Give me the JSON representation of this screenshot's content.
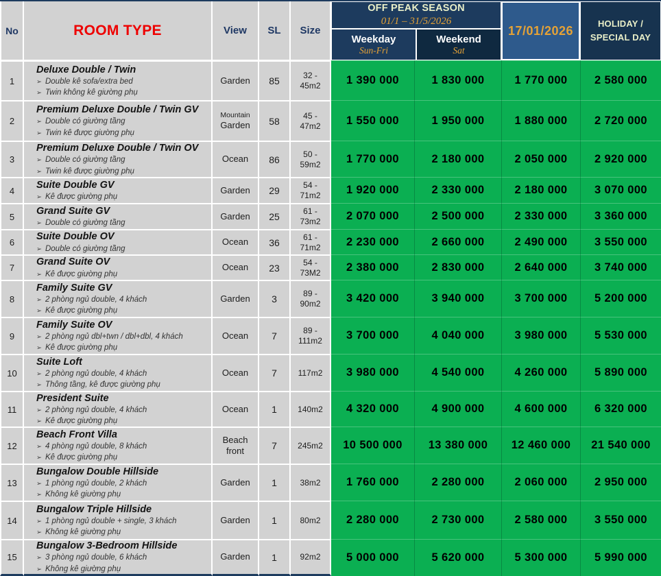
{
  "colors": {
    "green": "#0bAF52",
    "navy": "#1d3b5e",
    "navy_dark": "#0f2940",
    "blue": "#2e5a8c",
    "holiday_navy": "#17334f",
    "gray": "#d2d2d2",
    "red": "#ee0000",
    "navy_text": "#1f3864",
    "gold": "#e5a236",
    "pale_yellow": "#e9efc8"
  },
  "icons": {
    "bullet_marker": "➢"
  },
  "header": {
    "no": "No",
    "room_type": "ROOM TYPE",
    "view": "View",
    "sl": "SL",
    "size": "Size",
    "off_peak_title": "OFF PEAK SEASON",
    "off_peak_dates": "01/1 – 31/5/2026",
    "weekday_label": "Weekday",
    "weekday_sub": "Sun-Fri",
    "weekend_label": "Weekend",
    "weekend_sub": "Sat",
    "special_date": "17/01/2026",
    "holiday_line1": "HOLIDAY /",
    "holiday_line2": "SPECIAL DAY"
  },
  "rows": [
    {
      "no": "1",
      "title": "Deluxe Double / Twin",
      "bullets": [
        "Double kê sofa/extra bed",
        "Twin không kê giường phụ"
      ],
      "view": "Garden",
      "sl": "85",
      "size": "32 -\n45m2",
      "prices": [
        "1 390 000",
        "1 830 000",
        "1 770 000",
        "2 580 000"
      ]
    },
    {
      "no": "2",
      "title": "Premium Deluxe Double / Twin GV",
      "bullets": [
        "Double có giường tầng",
        "Twin kê được giường phụ"
      ],
      "view": "Mountain\nGarden",
      "view_first_line_small": true,
      "sl": "58",
      "size": "45 -\n47m2",
      "prices": [
        "1 550 000",
        "1 950 000",
        "1 880 000",
        "2 720 000"
      ]
    },
    {
      "no": "3",
      "title": "Premium Deluxe Double / Twin OV",
      "bullets": [
        "Double có giường tầng",
        "Twin kê được giường phụ"
      ],
      "view": "Ocean",
      "sl": "86",
      "size": "50 -\n59m2",
      "prices": [
        "1 770 000",
        "2 180 000",
        "2 050 000",
        "2 920 000"
      ]
    },
    {
      "no": "4",
      "title": "Suite Double GV",
      "bullets": [
        "Kê được giường phụ"
      ],
      "view": "Garden",
      "sl": "29",
      "size": "54 -\n71m2",
      "prices": [
        "1 920 000",
        "2 330 000",
        "2 180 000",
        "3 070 000"
      ]
    },
    {
      "no": "5",
      "title": "Grand Suite GV",
      "bullets": [
        "Double có giường tầng"
      ],
      "view": "Garden",
      "sl": "25",
      "size": "61 -\n73m2",
      "prices": [
        "2 070 000",
        "2 500 000",
        "2 330 000",
        "3 360 000"
      ]
    },
    {
      "no": "6",
      "title": "Suite Double OV",
      "bullets": [
        "Double có giường tầng"
      ],
      "view": "Ocean",
      "sl": "36",
      "size": "61 -\n71m2",
      "prices": [
        "2 230 000",
        "2 660 000",
        "2 490 000",
        "3 550 000"
      ]
    },
    {
      "no": "7",
      "title": "Grand Suite OV",
      "bullets": [
        "Kê được giường phụ"
      ],
      "view": "Ocean",
      "sl": "23",
      "size": "54 -\n73M2",
      "prices": [
        "2 380 000",
        "2 830 000",
        "2 640 000",
        "3 740 000"
      ]
    },
    {
      "no": "8",
      "title": "Family Suite GV",
      "bullets": [
        "2 phòng ngủ double, 4 khách",
        "Kê được giường phụ"
      ],
      "view": "Garden",
      "sl": "3",
      "size": "89 -\n90m2",
      "prices": [
        "3 420 000",
        "3 940 000",
        "3 700 000",
        "5 200 000"
      ]
    },
    {
      "no": "9",
      "title": "Family Suite OV",
      "bullets": [
        "2 phòng ngủ dbl+twn / dbl+dbl, 4 khách",
        "Kê được giường phụ"
      ],
      "view": "Ocean",
      "sl": "7",
      "size": "89 -\n111m2",
      "prices": [
        "3 700 000",
        "4 040 000",
        "3 980 000",
        "5 530 000"
      ]
    },
    {
      "no": "10",
      "title": "Suite Loft",
      "bullets": [
        "2 phòng ngủ double, 4 khách",
        "Thông tầng, kê được giường phụ"
      ],
      "view": "Ocean",
      "sl": "7",
      "size": "117m2",
      "prices": [
        "3 980 000",
        "4 540 000",
        "4 260 000",
        "5 890 000"
      ]
    },
    {
      "no": "11",
      "title": "President Suite",
      "bullets": [
        "2 phòng ngủ double, 4 khách",
        "Kê được giường phụ"
      ],
      "view": "Ocean",
      "sl": "1",
      "size": "140m2",
      "prices": [
        "4 320 000",
        "4 900 000",
        "4 600 000",
        "6 320 000"
      ]
    },
    {
      "no": "12",
      "title": "Beach Front Villa",
      "bullets": [
        "4 phòng ngủ double, 8 khách",
        "Kê được giường phụ"
      ],
      "view": "Beach\nfront",
      "sl": "7",
      "size": "245m2",
      "prices": [
        "10 500 000",
        "13 380 000",
        "12 460 000",
        "21 540 000"
      ]
    },
    {
      "no": "13",
      "title": "Bungalow Double Hillside",
      "bullets": [
        "1 phòng ngủ double, 2 khách",
        "Không kê giường phụ"
      ],
      "view": "Garden",
      "sl": "1",
      "size": "38m2",
      "prices": [
        "1 760 000",
        "2 280 000",
        "2 060 000",
        "2 950 000"
      ]
    },
    {
      "no": "14",
      "title": "Bungalow Triple Hillside",
      "bullets": [
        "1 phòng ngủ double + single, 3 khách",
        "Không kê giường phụ"
      ],
      "view": "Garden",
      "sl": "1",
      "size": "80m2",
      "prices": [
        "2 280 000",
        "2 730 000",
        "2 580 000",
        "3 550 000"
      ]
    },
    {
      "no": "15",
      "title": "Bungalow 3-Bedroom Hillside",
      "bullets": [
        "3 phòng ngủ double, 6 khách",
        "Không kê giường phụ"
      ],
      "view": "Garden",
      "sl": "1",
      "size": "92m2",
      "prices": [
        "5 000 000",
        "5 620 000",
        "5 300 000",
        "5 990 000"
      ]
    }
  ]
}
